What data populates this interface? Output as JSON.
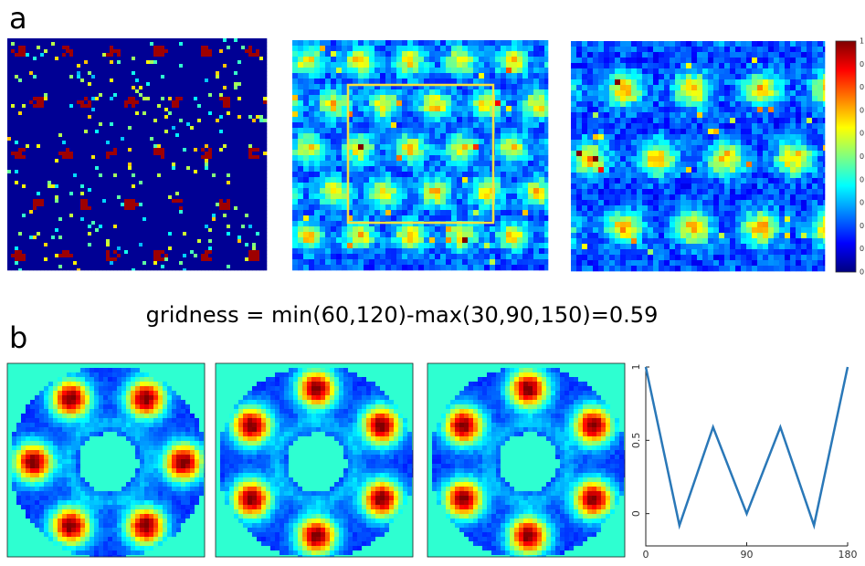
{
  "panel_a_label": "a",
  "panel_b_label": "b",
  "formula": "gridness = min(60,120)-max(30,90,150)=0.59",
  "colorbar": {
    "tick_labels": [
      "1",
      "0.",
      "0.",
      "0.",
      "0.",
      "0.",
      "0.",
      "0.",
      "0.",
      "0.",
      "0"
    ]
  },
  "chart_data": {
    "type": "line",
    "x": [
      0,
      30,
      60,
      90,
      120,
      150,
      180
    ],
    "values": [
      1,
      -0.08,
      0.59,
      0,
      0.59,
      -0.08,
      1
    ],
    "color": "#2a78b8",
    "xlim": [
      0,
      180
    ],
    "ylim": [
      -0.22,
      1
    ],
    "xticks": [
      0,
      90,
      180
    ],
    "yticks": [
      0,
      0.5,
      1
    ]
  }
}
